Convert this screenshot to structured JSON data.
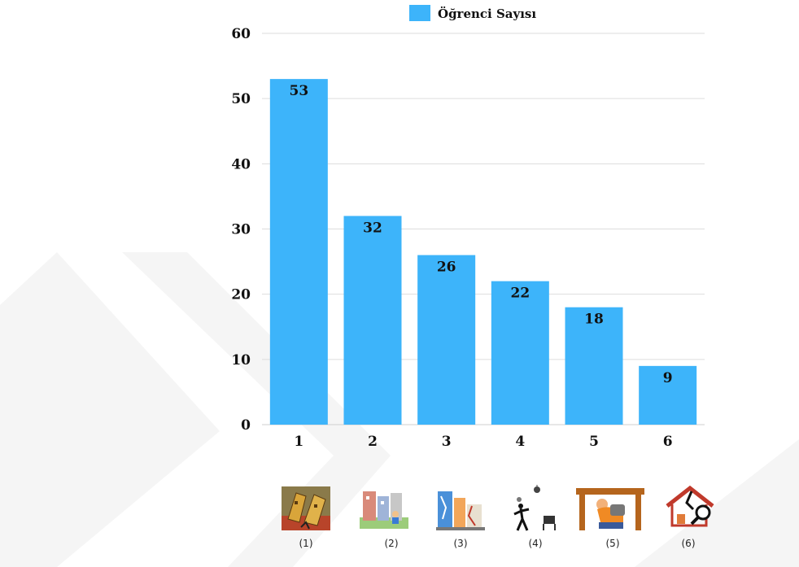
{
  "chart_data": {
    "type": "bar",
    "categories": [
      "1",
      "2",
      "3",
      "4",
      "5",
      "6"
    ],
    "series": [
      {
        "name": "Öğrenci Sayısı",
        "values": [
          53,
          32,
          26,
          22,
          18,
          9
        ]
      }
    ],
    "ylim": [
      0,
      60
    ],
    "yticks": [
      0,
      10,
      20,
      30,
      40,
      50,
      60
    ],
    "grid": true,
    "legend": "top-center",
    "bar_color": "#3DB4FA",
    "grid_color": "#DDDDDD"
  },
  "icons": [
    {
      "name": "collapsing-building-icon",
      "caption": "(1)"
    },
    {
      "name": "damaged-street-buildings-icon",
      "caption": "(2)"
    },
    {
      "name": "cracked-buildings-icon",
      "caption": "(3)"
    },
    {
      "name": "falling-objects-person-icon",
      "caption": "(4)"
    },
    {
      "name": "shelter-under-table-icon",
      "caption": "(5)"
    },
    {
      "name": "damaged-house-inspection-icon",
      "caption": "(6)"
    }
  ]
}
